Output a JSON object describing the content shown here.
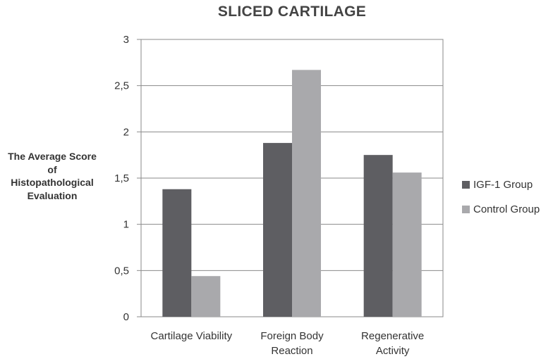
{
  "chart_data": {
    "type": "bar",
    "title": "SLICED CARTILAGE",
    "ylabel": "The Average Score of Histopathological Evaluation",
    "ylabel_lines": [
      "The Average Score",
      "of",
      "Histopathological",
      "Evaluation"
    ],
    "xlabel": "",
    "categories": [
      [
        "Cartilage Viability"
      ],
      [
        "Foreign Body",
        "Reaction"
      ],
      [
        "Regenerative",
        "Activity"
      ]
    ],
    "series": [
      {
        "name": "IGF-1 Group",
        "values": [
          1.38,
          1.88,
          1.75
        ],
        "color": "#5e5e62"
      },
      {
        "name": "Control Group",
        "values": [
          0.44,
          2.67,
          1.56
        ],
        "color": "#a9a9ac"
      }
    ],
    "ylim": [
      0,
      3
    ],
    "yticks": [
      "0",
      "0,5",
      "1",
      "1,5",
      "2",
      "2,5",
      "3"
    ],
    "ytick_values": [
      0,
      0.5,
      1,
      1.5,
      2,
      2.5,
      3
    ],
    "grid": true,
    "legend_position": "right"
  }
}
